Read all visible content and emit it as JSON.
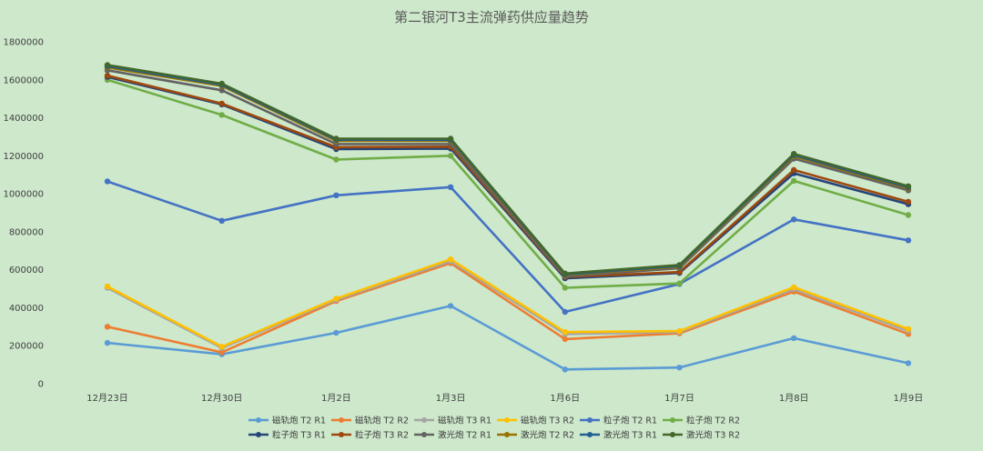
{
  "chart_data": {
    "type": "line",
    "title": "第二银河T3主流弹药供应量趋势",
    "xlabel": "",
    "ylabel": "",
    "categories": [
      "12月23日",
      "12月30日",
      "1月2日",
      "1月3日",
      "1月6日",
      "1月7日",
      "1月8日",
      "1月9日"
    ],
    "ylim": [
      0,
      1800000
    ],
    "yticks": [
      0,
      200000,
      400000,
      600000,
      800000,
      1000000,
      1200000,
      1400000,
      1600000,
      1800000
    ],
    "grid": false,
    "legend_position": "bottom",
    "series": [
      {
        "name": "磁轨炮 T2 R1",
        "color": "#5b9bd5",
        "values": [
          215000,
          155000,
          268000,
          410000,
          75000,
          85000,
          240000,
          108000
        ]
      },
      {
        "name": "磁轨炮 T2 R2",
        "color": "#ed7d31",
        "values": [
          300000,
          165000,
          435000,
          635000,
          235000,
          265000,
          485000,
          262000
        ]
      },
      {
        "name": "磁轨炮 T3 R1",
        "color": "#a5a5a5",
        "values": [
          505000,
          188000,
          442000,
          645000,
          262000,
          272000,
          498000,
          278000
        ]
      },
      {
        "name": "磁轨炮 T3 R2",
        "color": "#ffc000",
        "values": [
          512000,
          195000,
          448000,
          655000,
          272000,
          277000,
          508000,
          288000
        ]
      },
      {
        "name": "粒子炮 T2 R1",
        "color": "#4472c4",
        "values": [
          1065000,
          858000,
          992000,
          1035000,
          378000,
          525000,
          865000,
          755000
        ]
      },
      {
        "name": "粒子炮 T2 R2",
        "color": "#70ad47",
        "values": [
          1600000,
          1415000,
          1180000,
          1200000,
          505000,
          528000,
          1068000,
          888000
        ]
      },
      {
        "name": "粒子炮 T3 R1",
        "color": "#264478",
        "values": [
          1615000,
          1470000,
          1235000,
          1238000,
          555000,
          583000,
          1108000,
          945000
        ]
      },
      {
        "name": "粒子炮 T3 R2",
        "color": "#9e480e",
        "values": [
          1622000,
          1475000,
          1245000,
          1248000,
          562000,
          588000,
          1125000,
          958000
        ]
      },
      {
        "name": "激光炮 T2 R1",
        "color": "#636363",
        "values": [
          1650000,
          1545000,
          1262000,
          1262000,
          565000,
          608000,
          1185000,
          1018000
        ]
      },
      {
        "name": "激光炮 T2 R2",
        "color": "#997300",
        "values": [
          1665000,
          1568000,
          1278000,
          1278000,
          572000,
          615000,
          1198000,
          1028000
        ]
      },
      {
        "name": "激光炮 T3 R1",
        "color": "#255e91",
        "values": [
          1672000,
          1574000,
          1285000,
          1284000,
          576000,
          620000,
          1204000,
          1034000
        ]
      },
      {
        "name": "激光炮 T3 R2",
        "color": "#43682b",
        "values": [
          1678000,
          1580000,
          1290000,
          1290000,
          580000,
          625000,
          1210000,
          1040000
        ]
      }
    ]
  }
}
